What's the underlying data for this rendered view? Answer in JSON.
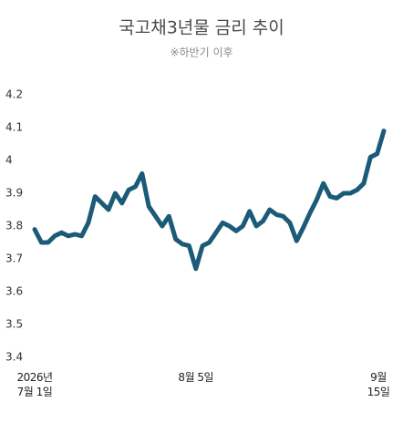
{
  "chart_data": {
    "type": "line",
    "title": "국고채3년물 금리 추이",
    "subtitle": "※하반기 이후",
    "categories": [
      "2026년\n7월 1일",
      null,
      null,
      null,
      null,
      null,
      null,
      null,
      null,
      null,
      null,
      null,
      null,
      null,
      null,
      null,
      null,
      null,
      null,
      null,
      null,
      null,
      null,
      null,
      "8월 5일",
      null,
      null,
      null,
      null,
      null,
      null,
      null,
      null,
      null,
      null,
      null,
      null,
      null,
      null,
      null,
      null,
      null,
      null,
      null,
      null,
      null,
      null,
      null,
      null,
      null,
      null,
      null,
      "9월 15일"
    ],
    "series": [
      {
        "name": "국고채3년물",
        "color": "#1b5b78",
        "values": [
          3.79,
          3.75,
          3.75,
          3.77,
          3.78,
          3.77,
          3.775,
          3.77,
          3.81,
          3.89,
          3.87,
          3.85,
          3.9,
          3.87,
          3.91,
          3.92,
          3.96,
          3.86,
          3.83,
          3.8,
          3.83,
          3.76,
          3.745,
          3.74,
          3.67,
          3.74,
          3.75,
          3.78,
          3.81,
          3.8,
          3.785,
          3.8,
          3.845,
          3.8,
          3.815,
          3.85,
          3.835,
          3.83,
          3.81,
          3.755,
          3.795,
          3.84,
          3.88,
          3.93,
          3.89,
          3.885,
          3.9,
          3.9,
          3.91,
          3.93,
          4.01,
          4.02,
          4.09
        ]
      }
    ],
    "ylim": [
      3.4,
      4.2
    ],
    "yticks": [
      3.4,
      3.5,
      3.6,
      3.7,
      3.8,
      3.9,
      4,
      4.1,
      4.2
    ],
    "grid": false
  }
}
